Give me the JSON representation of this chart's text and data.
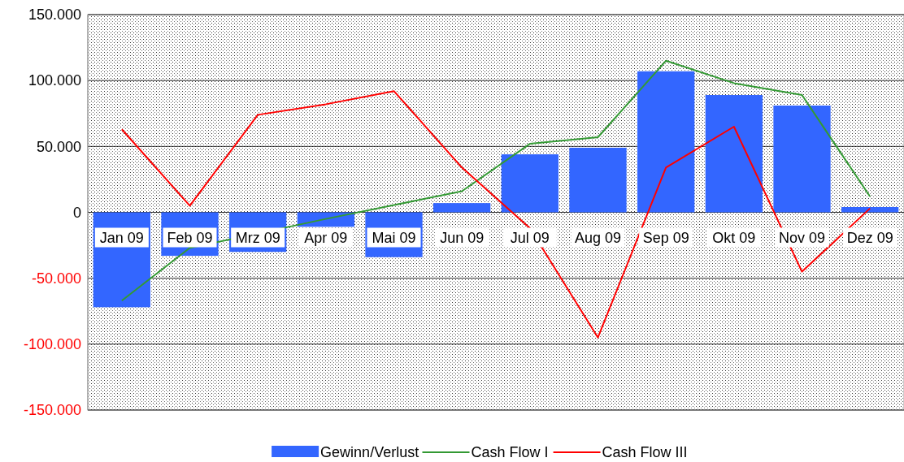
{
  "chart_data": {
    "type": "bar",
    "categories": [
      "Jan 09",
      "Feb 09",
      "Mrz 09",
      "Apr 09",
      "Mai 09",
      "Jun 09",
      "Jul 09",
      "Aug 09",
      "Sep 09",
      "Okt 09",
      "Nov 09",
      "Dez 09"
    ],
    "series": [
      {
        "name": "Gewinn/Verlust",
        "color": "#3366ff",
        "values": [
          -72000,
          -33000,
          -30000,
          -11000,
          -34000,
          7000,
          44000,
          49000,
          107000,
          89000,
          81000,
          4000
        ]
      },
      {
        "name": "Cash Flow I",
        "type": "line",
        "color": "#339933",
        "values": [
          -67000,
          -27000,
          null,
          -5000,
          null,
          16000,
          52000,
          57000,
          115000,
          98000,
          89000,
          12000
        ]
      },
      {
        "name": "Cash Flow III",
        "type": "line",
        "color": "#ff0000",
        "values": [
          63000,
          5000,
          74000,
          82000,
          92000,
          34000,
          -12000,
          -95000,
          34000,
          65000,
          -45000,
          3000
        ]
      }
    ],
    "ylim": [
      -150000,
      150000
    ],
    "yticks": [
      {
        "value": -150000,
        "label": "-150.000"
      },
      {
        "value": -100000,
        "label": "-100.000"
      },
      {
        "value": -50000,
        "label": "-50.000"
      },
      {
        "value": 0,
        "label": "0"
      },
      {
        "value": 50000,
        "label": "50.000"
      },
      {
        "value": 100000,
        "label": "100.000"
      },
      {
        "value": 150000,
        "label": "150.000"
      }
    ],
    "grid": "y",
    "legend": "bottom",
    "marker": "none"
  }
}
